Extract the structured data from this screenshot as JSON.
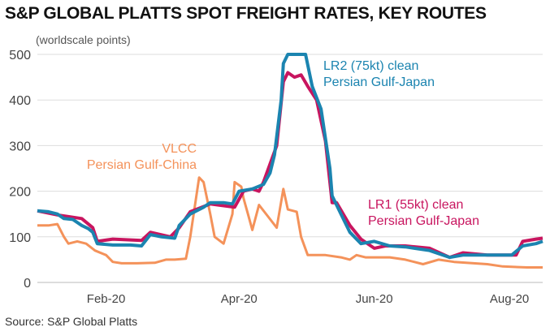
{
  "chart_data": {
    "type": "line",
    "title": "S&P GLOBAL PLATTS SPOT FREIGHT RATES, KEY ROUTES",
    "ylabel": "(worldscale points)",
    "xlabel": "",
    "source": "Source: S&P Global Platts",
    "x_unit": "days since 1 Jan 2020",
    "ylim": [
      0,
      500
    ],
    "xlim": [
      0,
      228
    ],
    "grid": true,
    "yticks": [
      0,
      100,
      200,
      300,
      400,
      500
    ],
    "xticks": [
      {
        "label": "Feb-20",
        "x": 31
      },
      {
        "label": "Apr-20",
        "x": 91
      },
      {
        "label": "Jun-20",
        "x": 152
      },
      {
        "label": "Aug-20",
        "x": 213
      }
    ],
    "series": [
      {
        "name": "VLCC Persian Gulf-China",
        "label_lines": [
          "VLCC",
          "Persian Gulf-China"
        ],
        "color": "#f4925a",
        "points": [
          [
            0,
            125
          ],
          [
            5,
            125
          ],
          [
            9,
            128
          ],
          [
            12,
            100
          ],
          [
            14,
            85
          ],
          [
            18,
            90
          ],
          [
            22,
            85
          ],
          [
            26,
            70
          ],
          [
            31,
            60
          ],
          [
            34,
            45
          ],
          [
            38,
            42
          ],
          [
            45,
            42
          ],
          [
            53,
            43
          ],
          [
            58,
            50
          ],
          [
            62,
            50
          ],
          [
            67,
            52
          ],
          [
            69,
            100
          ],
          [
            73,
            230
          ],
          [
            75,
            220
          ],
          [
            78,
            150
          ],
          [
            80,
            100
          ],
          [
            84,
            85
          ],
          [
            88,
            150
          ],
          [
            89,
            220
          ],
          [
            92,
            210
          ],
          [
            93,
            185
          ],
          [
            95,
            150
          ],
          [
            97,
            115
          ],
          [
            100,
            170
          ],
          [
            104,
            145
          ],
          [
            108,
            120
          ],
          [
            111,
            205
          ],
          [
            113,
            160
          ],
          [
            117,
            155
          ],
          [
            119,
            100
          ],
          [
            122,
            60
          ],
          [
            130,
            60
          ],
          [
            137,
            55
          ],
          [
            141,
            50
          ],
          [
            144,
            60
          ],
          [
            148,
            55
          ],
          [
            159,
            55
          ],
          [
            166,
            50
          ],
          [
            170,
            45
          ],
          [
            174,
            40
          ],
          [
            181,
            50
          ],
          [
            188,
            45
          ],
          [
            203,
            40
          ],
          [
            210,
            35
          ],
          [
            221,
            33
          ],
          [
            228,
            33
          ]
        ]
      },
      {
        "name": "LR1 (55kt) clean Persian Gulf-Japan",
        "label_lines": [
          "LR1 (55kt) clean",
          "Persian Gulf-Japan"
        ],
        "color": "#c8155f",
        "points": [
          [
            0,
            157
          ],
          [
            9,
            148
          ],
          [
            20,
            140
          ],
          [
            25,
            120
          ],
          [
            27,
            90
          ],
          [
            34,
            95
          ],
          [
            47,
            92
          ],
          [
            51,
            110
          ],
          [
            60,
            100
          ],
          [
            64,
            120
          ],
          [
            69,
            155
          ],
          [
            78,
            172
          ],
          [
            89,
            165
          ],
          [
            93,
            200
          ],
          [
            97,
            205
          ],
          [
            100,
            200
          ],
          [
            102,
            220
          ],
          [
            108,
            300
          ],
          [
            111,
            440
          ],
          [
            113,
            460
          ],
          [
            116,
            450
          ],
          [
            119,
            455
          ],
          [
            122,
            430
          ],
          [
            126,
            400
          ],
          [
            130,
            310
          ],
          [
            133,
            175
          ],
          [
            135,
            175
          ],
          [
            141,
            125
          ],
          [
            146,
            95
          ],
          [
            152,
            75
          ],
          [
            157,
            80
          ],
          [
            166,
            80
          ],
          [
            177,
            75
          ],
          [
            186,
            55
          ],
          [
            192,
            65
          ],
          [
            203,
            60
          ],
          [
            216,
            60
          ],
          [
            219,
            90
          ],
          [
            225,
            95
          ],
          [
            228,
            97
          ]
        ]
      },
      {
        "name": "LR2 (75kt) clean Persian Gulf-Japan",
        "label_lines": [
          "LR2 (75kt) clean",
          "Persian Gulf-Japan"
        ],
        "color": "#1b84b0",
        "points": [
          [
            0,
            157
          ],
          [
            5,
            155
          ],
          [
            9,
            150
          ],
          [
            12,
            140
          ],
          [
            16,
            138
          ],
          [
            20,
            125
          ],
          [
            23,
            118
          ],
          [
            25,
            110
          ],
          [
            27,
            85
          ],
          [
            34,
            82
          ],
          [
            42,
            82
          ],
          [
            47,
            80
          ],
          [
            51,
            105
          ],
          [
            56,
            100
          ],
          [
            62,
            97
          ],
          [
            64,
            125
          ],
          [
            69,
            150
          ],
          [
            75,
            165
          ],
          [
            78,
            175
          ],
          [
            84,
            175
          ],
          [
            88,
            172
          ],
          [
            91,
            200
          ],
          [
            97,
            205
          ],
          [
            102,
            215
          ],
          [
            105,
            240
          ],
          [
            107,
            280
          ],
          [
            110,
            400
          ],
          [
            111,
            480
          ],
          [
            113,
            500
          ],
          [
            121,
            500
          ],
          [
            124,
            430
          ],
          [
            128,
            380
          ],
          [
            132,
            250
          ],
          [
            133,
            190
          ],
          [
            137,
            150
          ],
          [
            141,
            110
          ],
          [
            146,
            85
          ],
          [
            152,
            90
          ],
          [
            159,
            80
          ],
          [
            166,
            78
          ],
          [
            177,
            70
          ],
          [
            186,
            55
          ],
          [
            192,
            60
          ],
          [
            203,
            60
          ],
          [
            214,
            60
          ],
          [
            219,
            80
          ],
          [
            225,
            85
          ],
          [
            228,
            90
          ]
        ]
      }
    ]
  }
}
